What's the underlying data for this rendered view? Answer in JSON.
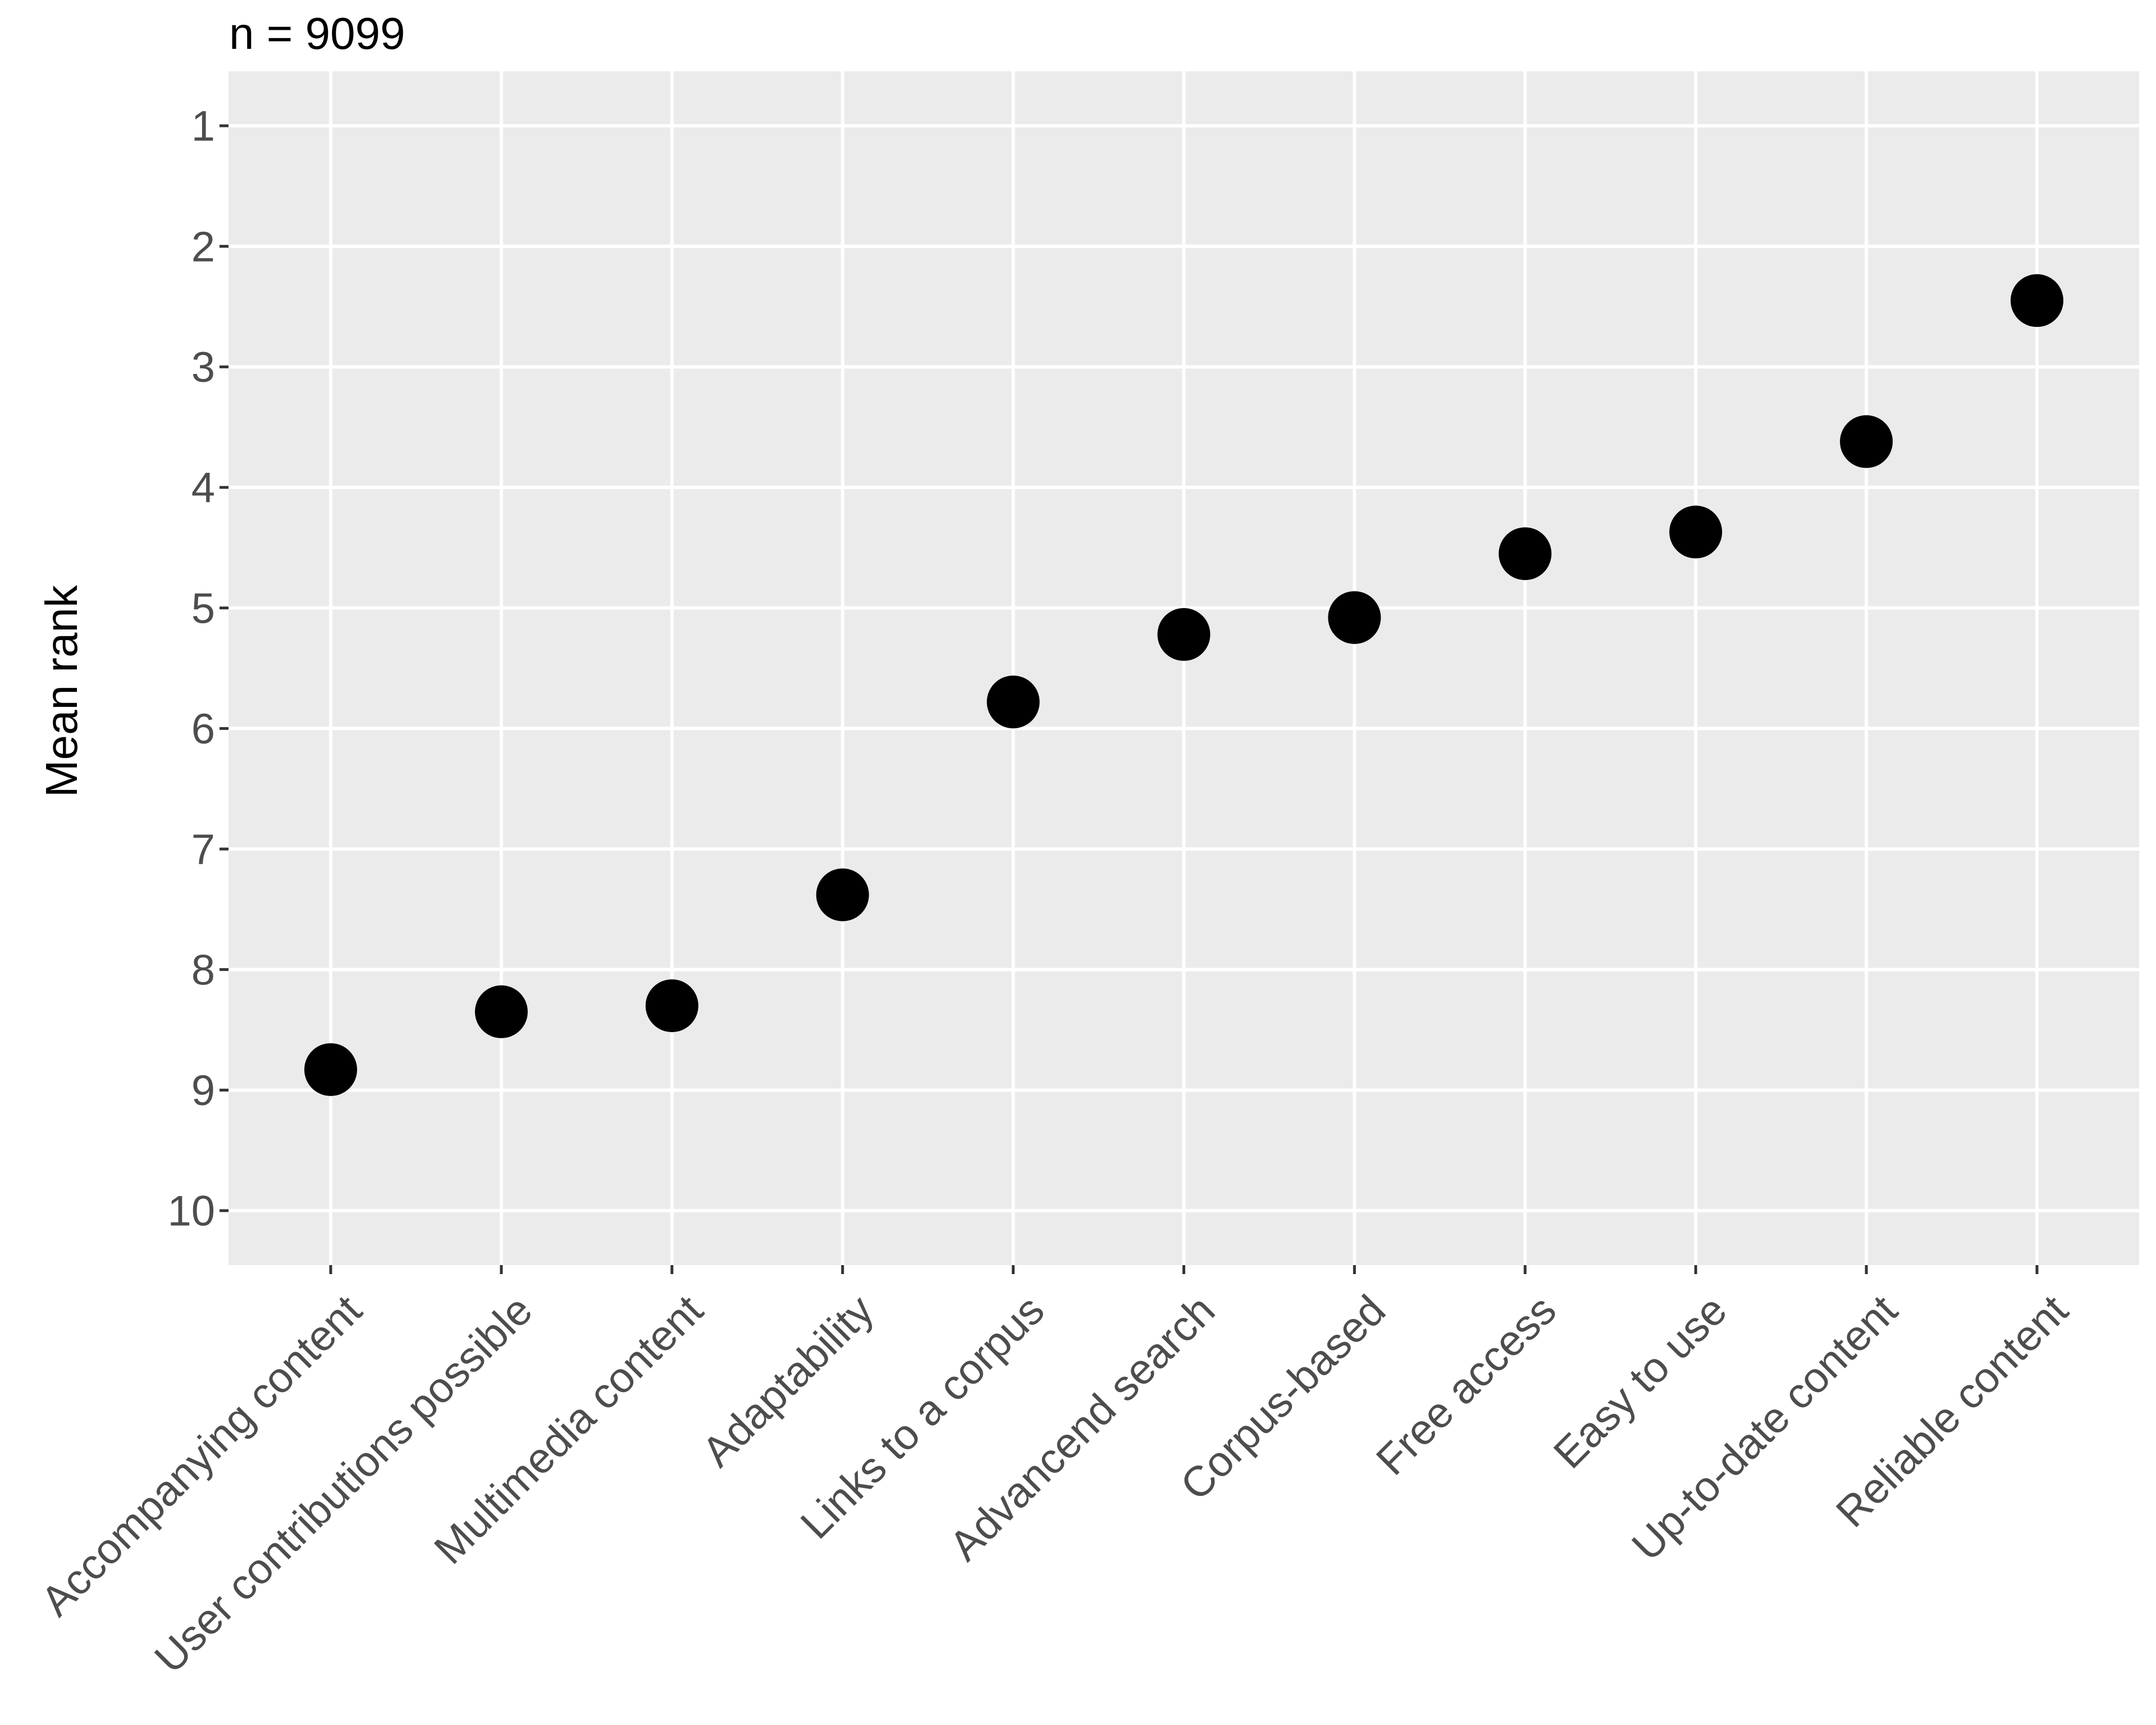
{
  "chart_data": {
    "type": "scatter",
    "title": "n = 9099",
    "xlabel": "",
    "ylabel": "Mean rank",
    "categories": [
      "Accompanying content",
      "User contributions possible",
      "Multimedia content",
      "Adaptability",
      "Links to a corpus",
      "Advancend search",
      "Corpus-based",
      "Free access",
      "Easy to use",
      "Up-to-date content",
      "Reliable content"
    ],
    "values": [
      8.83,
      8.35,
      8.3,
      7.38,
      5.78,
      5.22,
      5.08,
      4.55,
      4.37,
      3.62,
      2.45
    ],
    "y_axis": {
      "ticks": [
        1,
        2,
        3,
        4,
        5,
        6,
        7,
        8,
        9,
        10
      ],
      "reversed": true,
      "ylim_top": 0.55,
      "ylim_bottom": 10.45
    },
    "x_tick_angle_deg": 45,
    "legend_position": "none",
    "grid": "major white on gray panel",
    "colors": {
      "point": "#000000",
      "panel_background": "#EBEBEB",
      "gridline": "#FFFFFF",
      "axis_text": "#4D4D4D",
      "tick_mark": "#333333",
      "title_text": "#000000",
      "figure_background": "#FFFFFF"
    }
  }
}
